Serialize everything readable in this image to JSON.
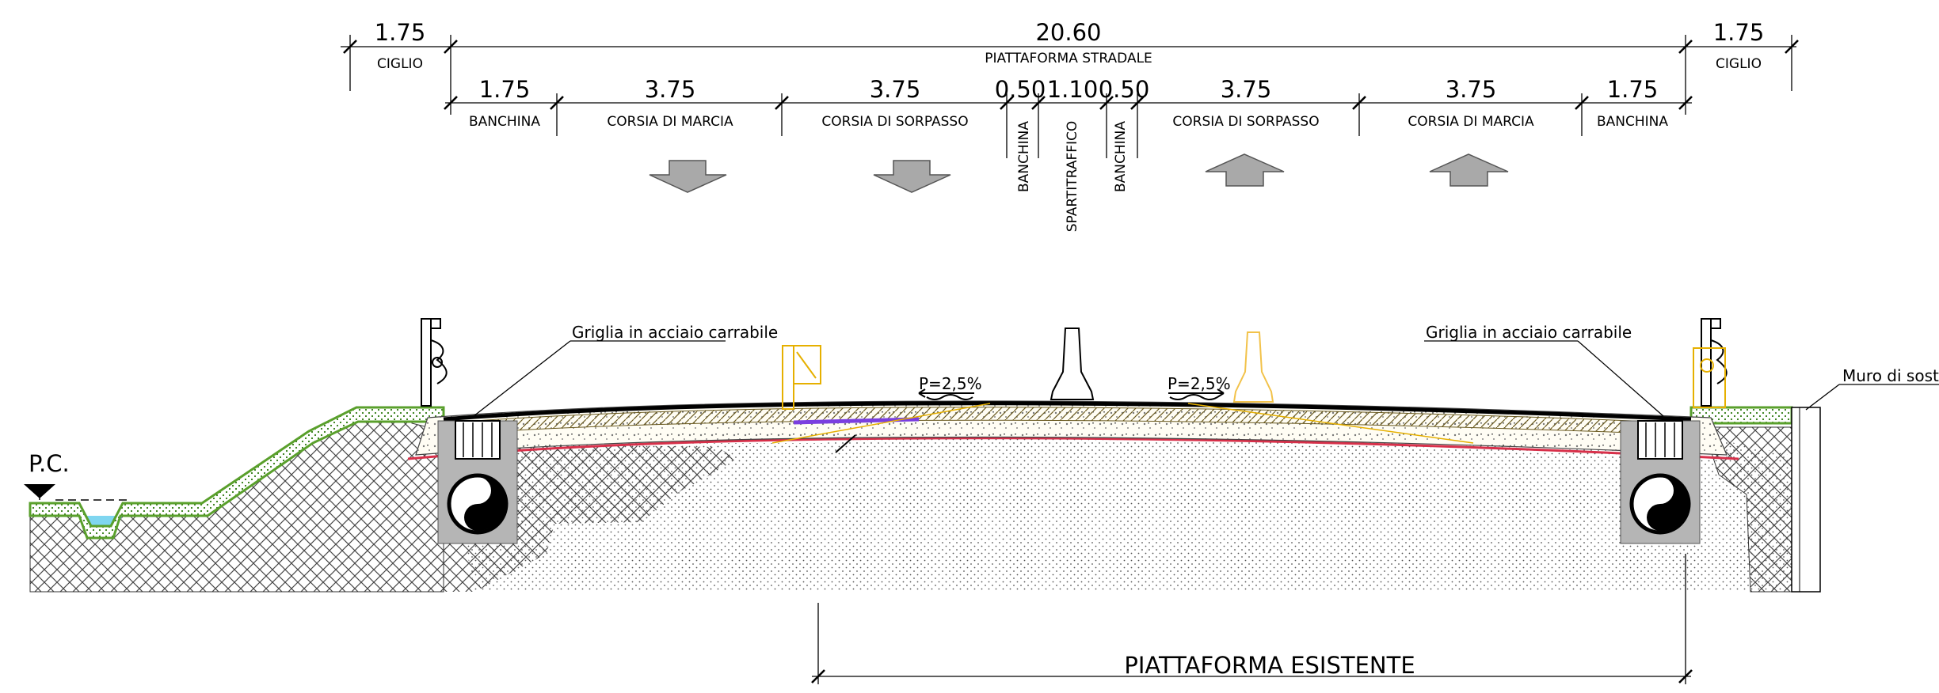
{
  "header": {
    "total_width": "20.60",
    "total_label": "PIATTAFORMA STRADALE",
    "left_edge": {
      "width": "1.75",
      "label": "CIGLIO"
    },
    "right_edge": {
      "width": "1.75",
      "label": "CIGLIO"
    }
  },
  "lanes": [
    {
      "width": "1.75",
      "label": "BANCHINA"
    },
    {
      "width": "3.75",
      "label": "CORSIA DI MARCIA"
    },
    {
      "width": "3.75",
      "label": "CORSIA DI SORPASSO"
    },
    {
      "width": "0.50",
      "label": "BANCHINA"
    },
    {
      "width": "1.10",
      "label": "SPARTITRAFFICO"
    },
    {
      "width": "0.50",
      "label": "BANCHINA"
    },
    {
      "width": "3.75",
      "label": "CORSIA DI SORPASSO"
    },
    {
      "width": "3.75",
      "label": "CORSIA DI MARCIA"
    },
    {
      "width": "1.75",
      "label": "BANCHINA"
    }
  ],
  "section": {
    "grate_left": "Griglia in acciaio carrabile",
    "grate_right": "Griglia in acciaio carrabile",
    "wall": "Muro di sostegno",
    "ground_level": "P.C.",
    "slope_left": "P=2,5%",
    "slope_right": "P=2,5%",
    "existing": "PIATTAFORMA ESISTENTE"
  },
  "colors": {
    "green_embankment": "#5aa02c",
    "water": "#7fd6f0",
    "barrier_new": "#f2c24a",
    "sign_yellow": "#e6b000",
    "red_layer": "#d8304a",
    "purple_layer": "#7a3fe0",
    "arrow_fill": "#a9a9a9",
    "manhole_grey": "#b5b5b5"
  }
}
